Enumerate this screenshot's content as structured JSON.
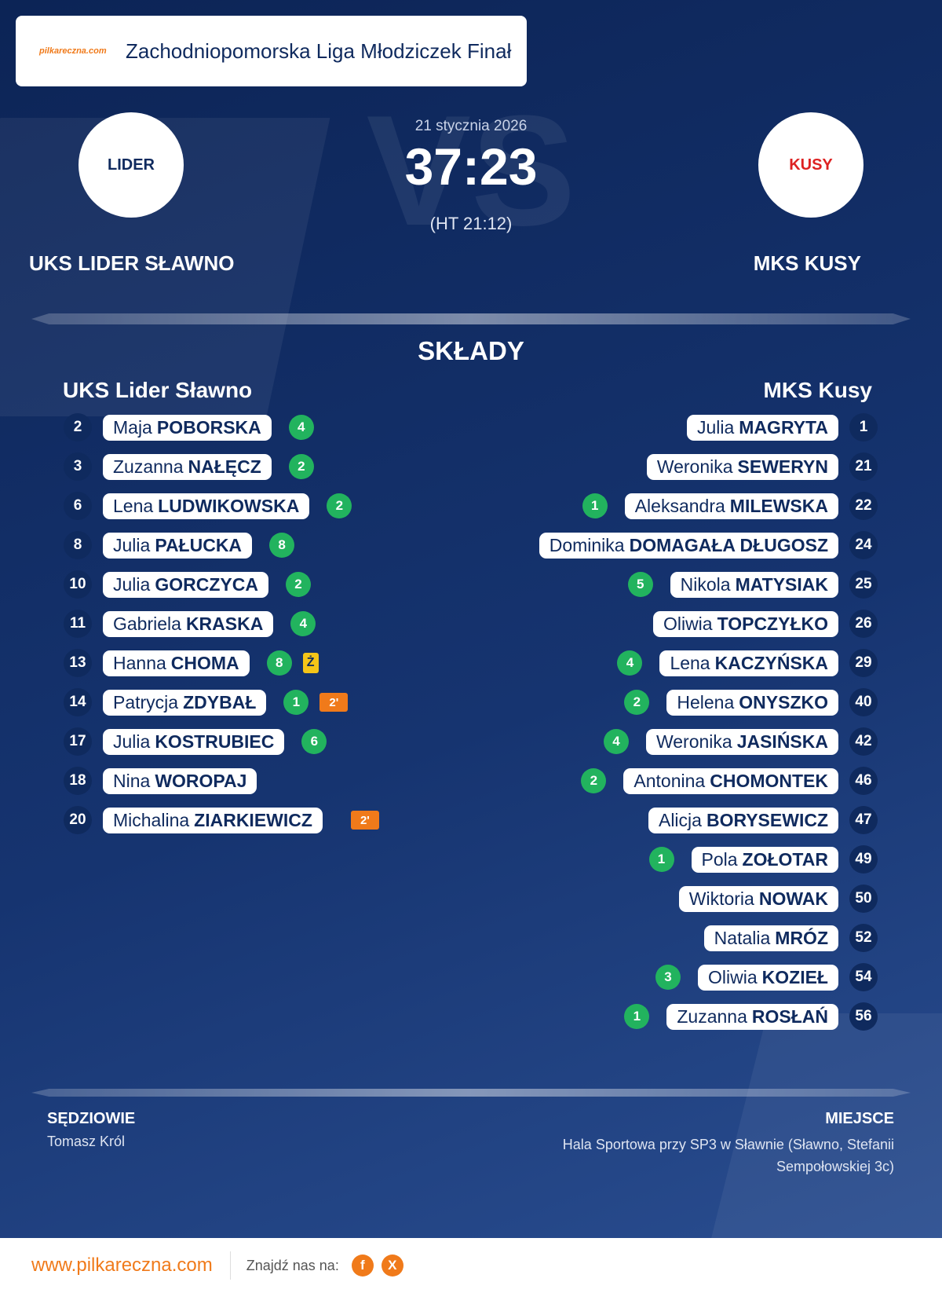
{
  "header": {
    "logo": "pilkareczna.com",
    "title": "Zachodniopomorska Liga Młodziczek Finał"
  },
  "match": {
    "date": "21 stycznia 2026",
    "score": "37:23",
    "half_time": "(HT 21:12)",
    "watermark": "VS",
    "home": {
      "name": "UKS LIDER SŁAWNO",
      "crest": "LIDER"
    },
    "away": {
      "name": "MKS KUSY",
      "crest": "KUSY"
    }
  },
  "lineups": {
    "title": "SKŁADY",
    "home": {
      "team": "UKS Lider Sławno",
      "players": [
        {
          "number": 2,
          "first": "Maja",
          "last": "POBORSKA",
          "goals": 4
        },
        {
          "number": 3,
          "first": "Zuzanna",
          "last": "NAŁĘCZ",
          "goals": 2
        },
        {
          "number": 6,
          "first": "Lena",
          "last": "LUDWIKOWSKA",
          "goals": 2
        },
        {
          "number": 8,
          "first": "Julia",
          "last": "PAŁUCKA",
          "goals": 8
        },
        {
          "number": 10,
          "first": "Julia",
          "last": "GORCZYCA",
          "goals": 2
        },
        {
          "number": 11,
          "first": "Gabriela",
          "last": "KRASKA",
          "goals": 4
        },
        {
          "number": 13,
          "first": "Hanna",
          "last": "CHOMA",
          "goals": 8,
          "cards": [
            "Ż"
          ]
        },
        {
          "number": 14,
          "first": "Patrycja",
          "last": "ZDYBAŁ",
          "goals": 1,
          "cards": [
            "2'"
          ]
        },
        {
          "number": 17,
          "first": "Julia",
          "last": "KOSTRUBIEC",
          "goals": 6
        },
        {
          "number": 18,
          "first": "Nina",
          "last": "WOROPAJ"
        },
        {
          "number": 20,
          "first": "Michalina",
          "last": "ZIARKIEWICZ",
          "cards": [
            "2'"
          ]
        }
      ]
    },
    "away": {
      "team": "MKS Kusy",
      "players": [
        {
          "number": 1,
          "first": "Julia",
          "last": "MAGRYTA"
        },
        {
          "number": 21,
          "first": "Weronika",
          "last": "SEWERYN"
        },
        {
          "number": 22,
          "first": "Aleksandra",
          "last": "MILEWSKA",
          "goals": 1
        },
        {
          "number": 24,
          "first": "Dominika",
          "last": "DOMAGAŁA DŁUGOSZ"
        },
        {
          "number": 25,
          "first": "Nikola",
          "last": "MATYSIAK",
          "goals": 5
        },
        {
          "number": 26,
          "first": "Oliwia",
          "last": "TOPCZYŁKO"
        },
        {
          "number": 29,
          "first": "Lena",
          "last": "KACZYŃSKA",
          "goals": 4
        },
        {
          "number": 40,
          "first": "Helena",
          "last": "ONYSZKO",
          "goals": 2
        },
        {
          "number": 42,
          "first": "Weronika",
          "last": "JASIŃSKA",
          "goals": 4
        },
        {
          "number": 46,
          "first": "Antonina",
          "last": "CHOMONTEK",
          "goals": 2
        },
        {
          "number": 47,
          "first": "Alicja",
          "last": "BORYSEWICZ"
        },
        {
          "number": 49,
          "first": "Pola",
          "last": "ZOŁOTAR",
          "goals": 1
        },
        {
          "number": 50,
          "first": "Wiktoria",
          "last": "NOWAK"
        },
        {
          "number": 52,
          "first": "Natalia",
          "last": "MRÓZ"
        },
        {
          "number": 54,
          "first": "Oliwia",
          "last": "KOZIEŁ",
          "goals": 3
        },
        {
          "number": 56,
          "first": "Zuzanna",
          "last": "ROSŁAŃ",
          "goals": 1
        }
      ]
    }
  },
  "officials": {
    "label": "SĘDZIOWIE",
    "names": "Tomasz Król"
  },
  "venue": {
    "label": "MIEJSCE",
    "address": "Hala Sportowa przy SP3 w Sławnie (Sławno, Stefanii Sempołowskiej 3c)"
  },
  "footer": {
    "url": "www.pilkareczna.com",
    "follow": "Znajdź nas na:",
    "facebook": "f",
    "x": "X"
  }
}
